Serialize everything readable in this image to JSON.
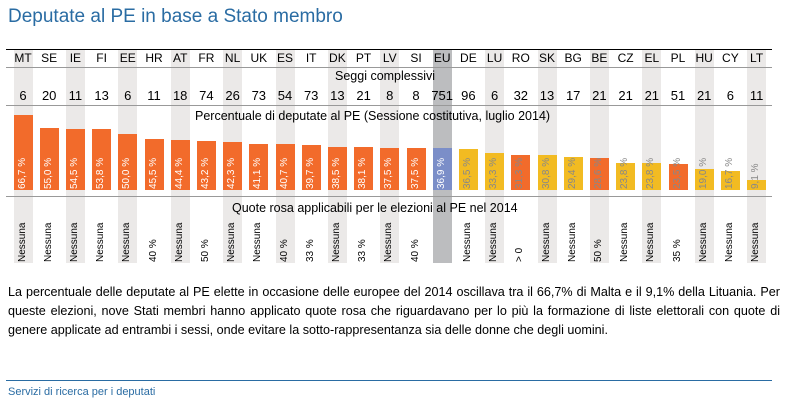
{
  "title": "Deputate al PE in base a Stato membro",
  "chart_data": {
    "type": "bar",
    "title": "Deputate al PE in base a Stato membro",
    "categories": [
      "MT",
      "SE",
      "IE",
      "FI",
      "EE",
      "HR",
      "AT",
      "FR",
      "NL",
      "UK",
      "ES",
      "IT",
      "DK",
      "PT",
      "LV",
      "SI",
      "EU",
      "DE",
      "LU",
      "RO",
      "SK",
      "BG",
      "BE",
      "CZ",
      "EL",
      "PL",
      "HU",
      "CY",
      "LT"
    ],
    "seats_title": "Seggi complessivi",
    "seats": [
      6,
      20,
      11,
      13,
      6,
      11,
      18,
      74,
      26,
      73,
      54,
      73,
      13,
      21,
      8,
      8,
      751,
      96,
      6,
      32,
      13,
      17,
      21,
      21,
      21,
      51,
      21,
      6,
      11
    ],
    "values_title": "Percentuale di deputate al PE (Sessione costitutiva, luglio 2014)",
    "values": [
      66.7,
      55.0,
      54.5,
      53.8,
      50.0,
      45.5,
      44.4,
      43.2,
      42.3,
      41.1,
      40.7,
      39.7,
      38.5,
      38.1,
      37.5,
      37.5,
      36.9,
      36.5,
      33.3,
      31.3,
      30.8,
      29.4,
      28.6,
      23.8,
      23.8,
      23.5,
      19.0,
      16.7,
      9.1
    ],
    "value_labels": [
      "66,7 %",
      "55,0 %",
      "54,5 %",
      "53,8 %",
      "50,0 %",
      "45,5 %",
      "44,4 %",
      "43,2 %",
      "42,3 %",
      "41,1 %",
      "40,7 %",
      "39,7 %",
      "38,5 %",
      "38,1 %",
      "37,5 %",
      "37,5 %",
      "36,9 %",
      "36,5 %",
      "33,3 %",
      "31,3 %",
      "30,8 %",
      "29,4 %",
      "28,6 %",
      "23,8 %",
      "23,8 %",
      "23,5 %",
      "19,0 %",
      "16,7 %",
      "9,1 %"
    ],
    "quota_title": "Quote rosa applicabili per le elezioni al PE nel 2014",
    "quotas": [
      "Nessuna",
      "Nessuna",
      "Nessuna",
      "Nessuna",
      "Nessuna",
      "40 %",
      "Nessuna",
      "50 %",
      "Nessuna",
      "Nessuna",
      "40 %",
      "33 %",
      "Nessuna",
      "33 %",
      "Nessuna",
      "40 %",
      "",
      "Nessuna",
      "Nessuna",
      "> 0",
      "Nessuna",
      "Nessuna",
      "50 %",
      "Nessuna",
      "Nessuna",
      "35 %",
      "Nessuna",
      "Nessuna",
      "Nessuna"
    ],
    "colors": {
      "quota": "#f26b2b",
      "eu": "#7b8ec8",
      "no_quota": "#f2bb22",
      "shade": "#ebe9e8",
      "eu_shade": "#bcbdbf"
    }
  },
  "paragraph": "La percentuale delle deputate al PE elette in occasione delle europee del 2014 oscillava tra il 66,7% di Malta e il 9,1% della Lituania. Per queste elezioni, nove Stati membri hanno applicato quote rosa che riguardavano per lo più la formazione di liste elettorali con quote di genere applicate ad entrambi i sessi, onde evitare la sotto-rappresentanza sia delle donne che degli uomini.",
  "footer": "Servizi di ricerca per i deputati"
}
